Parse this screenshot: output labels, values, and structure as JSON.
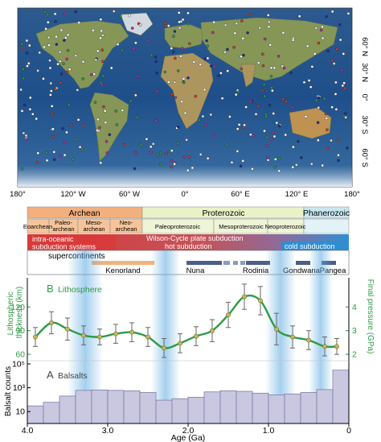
{
  "map": {
    "lon_ticks": [
      "180°",
      "120° W",
      "60° W",
      "0°",
      "60° E",
      "120° E",
      "180°"
    ],
    "lat_ticks": [
      "60° N",
      "30° N",
      "0°",
      "30° S",
      "60° S"
    ]
  },
  "eons": [
    {
      "label": "Archean",
      "color": "#f4b07c"
    },
    {
      "label": "Proterozoic",
      "color": "#e9f2c6"
    },
    {
      "label": "Phanerozoic",
      "color": "#c8e8f0"
    }
  ],
  "eras": [
    {
      "label": "Eoarchean",
      "color": "#f6c49a"
    },
    {
      "label": "Paleo-\narchean",
      "color": "#f6c49a"
    },
    {
      "label": "Meso-\narchean",
      "color": "#f6c49a"
    },
    {
      "label": "Neo-\narchean",
      "color": "#f6c49a"
    },
    {
      "label": "Paleoproterozoic",
      "color": "#eef4d6"
    },
    {
      "label": "Mesoproterozoic",
      "color": "#eef4d6"
    },
    {
      "label": "Neoproterozoic",
      "color": "#eef4d6"
    }
  ],
  "regimes": [
    {
      "label": "intra-oceanic\nsubduction systems",
      "color": "#d93a3a"
    },
    {
      "label": "hot subduction",
      "color": "#c94f4f"
    },
    {
      "label": "Wilson-Cycle plate subduction",
      "color": "#b8585c"
    },
    {
      "label": "cold subduction",
      "color": "#2f8ed1"
    }
  ],
  "supercontinents": {
    "title": "supercontinents",
    "items": [
      {
        "label": "Kenorland",
        "color": "#f3b27d"
      },
      {
        "label": "Nuna",
        "color": "#4a5e8c"
      },
      {
        "label": "Rodinia",
        "color": "#4a5e8c"
      },
      {
        "label": "Gondwana",
        "color": "#4a5e8c"
      },
      {
        "label": "Pangea",
        "color": "#4a5e8c"
      }
    ]
  },
  "panel_b": {
    "letter": "B",
    "title": "Lithosphere"
  },
  "panel_a": {
    "letter": "A",
    "title": "Balsalts"
  },
  "chart_data": [
    {
      "type": "line",
      "title": "Lithosphere",
      "xlabel": "Age (Ga)",
      "ylabel": "Lithospheric thickness (km)",
      "y2label": "Final pressure (GPa)",
      "xlim": [
        4.0,
        0.0
      ],
      "ylim": [
        55,
        155
      ],
      "x_ticks": [
        "4.0",
        "3.0",
        "2.0",
        "1.0",
        "0"
      ],
      "y_ticks": [
        "60",
        "90",
        "120"
      ],
      "y2_ticks": [
        "2",
        "3",
        "4"
      ],
      "series": [
        {
          "color": "#2e9a47",
          "x": [
            3.9,
            3.7,
            3.5,
            3.3,
            3.1,
            2.9,
            2.7,
            2.5,
            2.3,
            2.1,
            1.9,
            1.7,
            1.5,
            1.3,
            1.1,
            0.9,
            0.7,
            0.5,
            0.3,
            0.15
          ],
          "y": [
            82,
            100,
            92,
            84,
            82,
            86,
            88,
            82,
            68,
            74,
            83,
            90,
            110,
            133,
            128,
            92,
            82,
            78,
            70,
            70
          ],
          "err": [
            12,
            14,
            14,
            12,
            10,
            12,
            12,
            12,
            12,
            12,
            12,
            14,
            16,
            16,
            18,
            20,
            14,
            12,
            12,
            10
          ]
        }
      ]
    },
    {
      "type": "bar",
      "title": "Balsalts",
      "ylabel": "Balsalt counts",
      "yscale": "log",
      "y_ticks": [
        "10",
        "10³",
        "10⁵"
      ],
      "x_bin_start": [
        4.0,
        3.8,
        3.6,
        3.4,
        3.2,
        3.0,
        2.8,
        2.6,
        2.4,
        2.2,
        2.0,
        1.8,
        1.6,
        1.4,
        1.2,
        1.0,
        0.8,
        0.6,
        0.4,
        0.2
      ],
      "values": [
        30,
        60,
        200,
        600,
        650,
        600,
        550,
        400,
        90,
        120,
        160,
        450,
        550,
        500,
        350,
        250,
        300,
        400,
        700,
        30000
      ]
    }
  ]
}
